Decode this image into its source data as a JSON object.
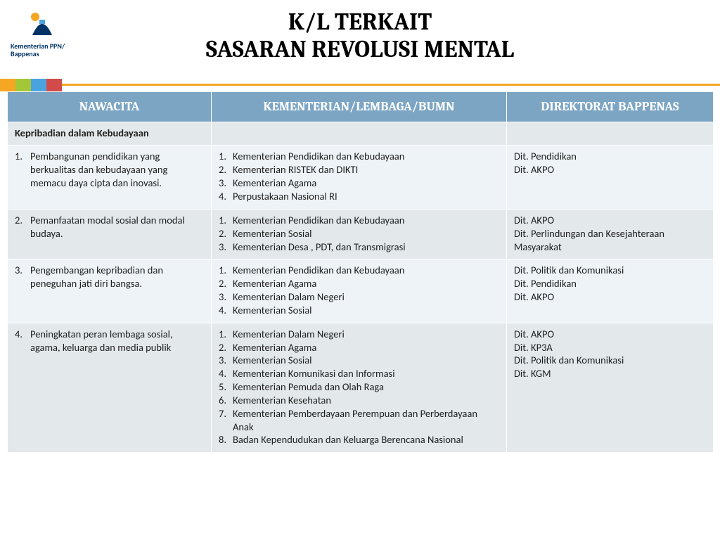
{
  "logo": {
    "line1": "Kementerian PPN/",
    "line2": "Bappenas",
    "colors": [
      "#f5a623",
      "#a4c639",
      "#4aa3df",
      "#d14b4b",
      "#003366"
    ]
  },
  "title_line1": "K/L TERKAIT",
  "title_line2": "SASARAN REVOLUSI MENTAL",
  "palette": {
    "header_bg": "#7ca5c4",
    "header_fg": "#ffffff",
    "row_light": "#eef3f7",
    "row_dark": "#e3e8eb",
    "text": "#202020"
  },
  "columns": {
    "c1": "NAWACITA",
    "c2": "KEMENTERIAN/LEMBAGA/BUMN",
    "c3": "DIREKTORAT BAPPENAS",
    "widths": [
      "290px",
      "420px",
      "294px"
    ]
  },
  "section_heading": "Kepribadian dalam Kebudayaan",
  "rows": [
    {
      "num": "1.",
      "nawacita": "Pembangunan pendidikan yang berkualitas dan kebudayaan yang memacu daya cipta dan inovasi.",
      "kl": [
        "Kementerian Pendidikan dan Kebudayaan",
        "Kementerian RISTEK dan DIKTI",
        "Kementerian Agama",
        "Perpustakaan Nasional RI"
      ],
      "dir": [
        "Dit. Pendidikan",
        "Dit. AKPO"
      ]
    },
    {
      "num": "2.",
      "nawacita": "Pemanfaatan modal sosial dan modal budaya.",
      "kl": [
        "Kementerian Pendidikan dan Kebudayaan",
        "Kementerian Sosial",
        "Kementerian Desa , PDT, dan Transmigrasi"
      ],
      "dir": [
        "Dit. AKPO",
        "Dit. Perlindungan dan Kesejahteraan Masyarakat"
      ]
    },
    {
      "num": "3.",
      "nawacita": "Pengembangan kepribadian dan peneguhan jati diri bangsa.",
      "kl": [
        "Kementerian Pendidikan dan Kebudayaan",
        "Kementerian Agama",
        "Kementerian Dalam Negeri",
        "Kementerian Sosial"
      ],
      "dir": [
        "Dit. Politik dan Komunikasi",
        "Dit. Pendidikan",
        "Dit. AKPO"
      ]
    },
    {
      "num": "4.",
      "nawacita": "Peningkatan peran lembaga sosial, agama, keluarga dan media publik",
      "kl": [
        "Kementerian Dalam Negeri",
        "Kementerian Agama",
        "Kementerian Sosial",
        "Kementerian Komunikasi dan Informasi",
        "Kementerian Pemuda dan Olah Raga",
        "Kementerian Kesehatan",
        "Kementerian Pemberdayaan Perempuan dan Perberdayaan Anak",
        "Badan Kependudukan dan Keluarga Berencana Nasional"
      ],
      "dir": [
        "Dit. AKPO",
        "Dit. KP3A",
        "Dit. Politik dan Komunikasi",
        "Dit. KGM"
      ]
    }
  ]
}
